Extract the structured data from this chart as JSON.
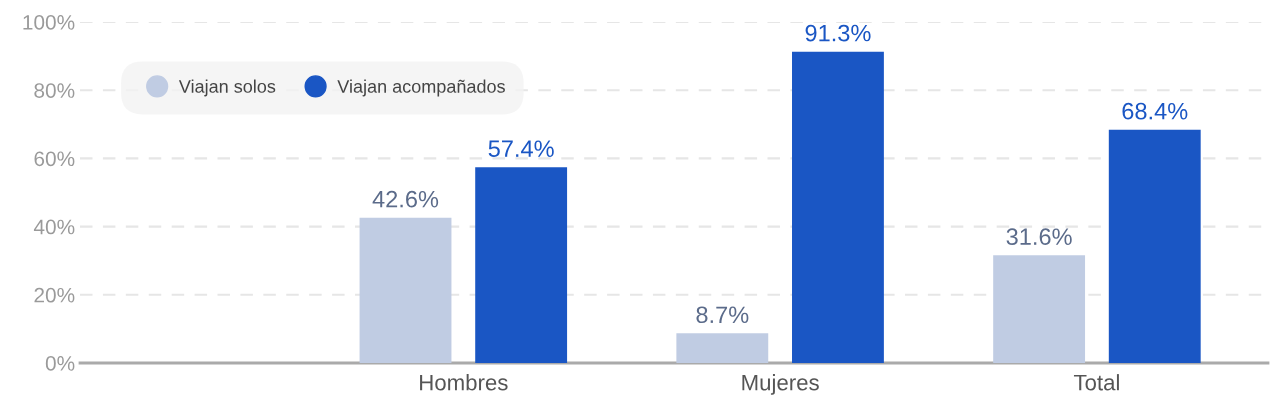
{
  "chart_data": {
    "type": "bar",
    "categories": [
      "Hombres",
      "Mujeres",
      "Total"
    ],
    "series": [
      {
        "name": "Viajan solos",
        "color": "#c0cce3",
        "values": [
          42.6,
          8.7,
          31.6
        ],
        "value_labels": [
          "42.6%",
          "8.7%",
          "31.6%"
        ]
      },
      {
        "name": "Viajan acompañados",
        "color": "#1a56c4",
        "values": [
          57.4,
          91.3,
          68.4
        ],
        "value_labels": [
          "57.4%",
          "91.3%",
          "68.4%"
        ]
      }
    ],
    "ylim": [
      0,
      100
    ],
    "yticks": [
      {
        "value": 0,
        "label": "0%"
      },
      {
        "value": 20,
        "label": "20%"
      },
      {
        "value": 40,
        "label": "40%"
      },
      {
        "value": 60,
        "label": "60%"
      },
      {
        "value": 80,
        "label": "80%"
      },
      {
        "value": 100,
        "label": "100%"
      }
    ],
    "grid": "y",
    "legend": "top left"
  }
}
